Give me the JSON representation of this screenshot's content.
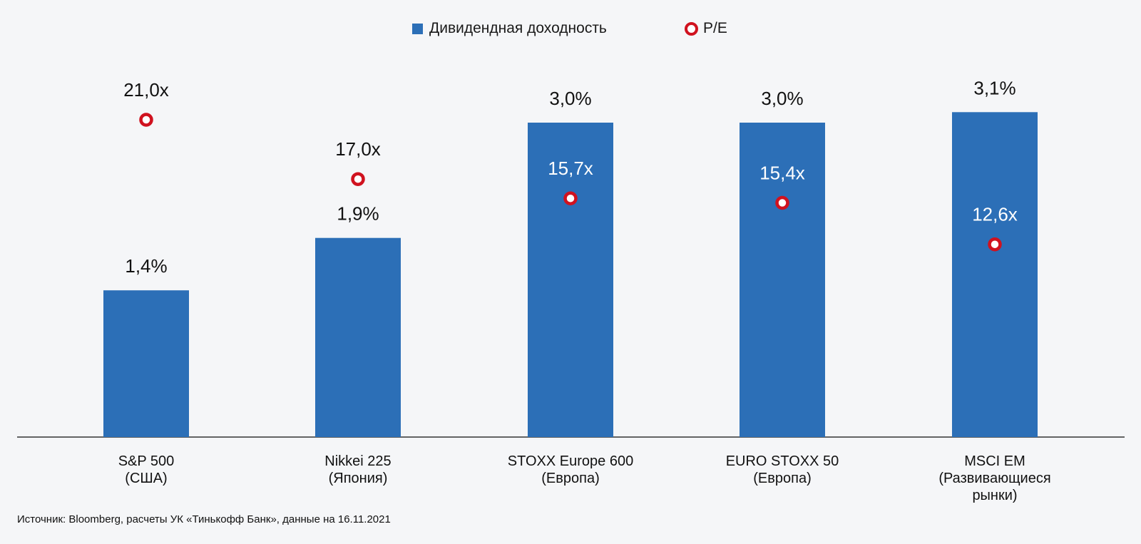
{
  "legend": {
    "dividend_label": "Дивидендная доходность",
    "pe_label": "P/E"
  },
  "source_note": "Источник: Bloomberg, расчеты УК «Тинькофф Банк», данные на 16.11.2021",
  "colors": {
    "bar": "#2c6fb7",
    "pe_marker": "#d0121f",
    "axis": "#333333",
    "background": "#f5f6f8"
  },
  "chart_data": {
    "type": "bar",
    "categories": [
      [
        "S&P 500",
        "(США)"
      ],
      [
        "Nikkei 225",
        "(Япония)"
      ],
      [
        "STOXX Europe 600",
        "(Европа)"
      ],
      [
        "EURO STOXX 50",
        "(Европа)"
      ],
      [
        "MSCI EM",
        "(Развивающиеся",
        "рынки)"
      ]
    ],
    "series": [
      {
        "name": "Дивидендная доходность",
        "type": "bar",
        "values": [
          1.4,
          1.9,
          3.0,
          3.0,
          3.1
        ],
        "labels": [
          "1,4%",
          "1,9%",
          "3,0%",
          "3,0%",
          "3,1%"
        ]
      },
      {
        "name": "P/E",
        "type": "scatter",
        "values": [
          21.0,
          17.0,
          15.7,
          15.4,
          12.6
        ],
        "labels": [
          "21,0x",
          "17,0x",
          "15,7x",
          "15,4x",
          "12,6x"
        ]
      }
    ],
    "legend_position": "top",
    "grid": false
  }
}
